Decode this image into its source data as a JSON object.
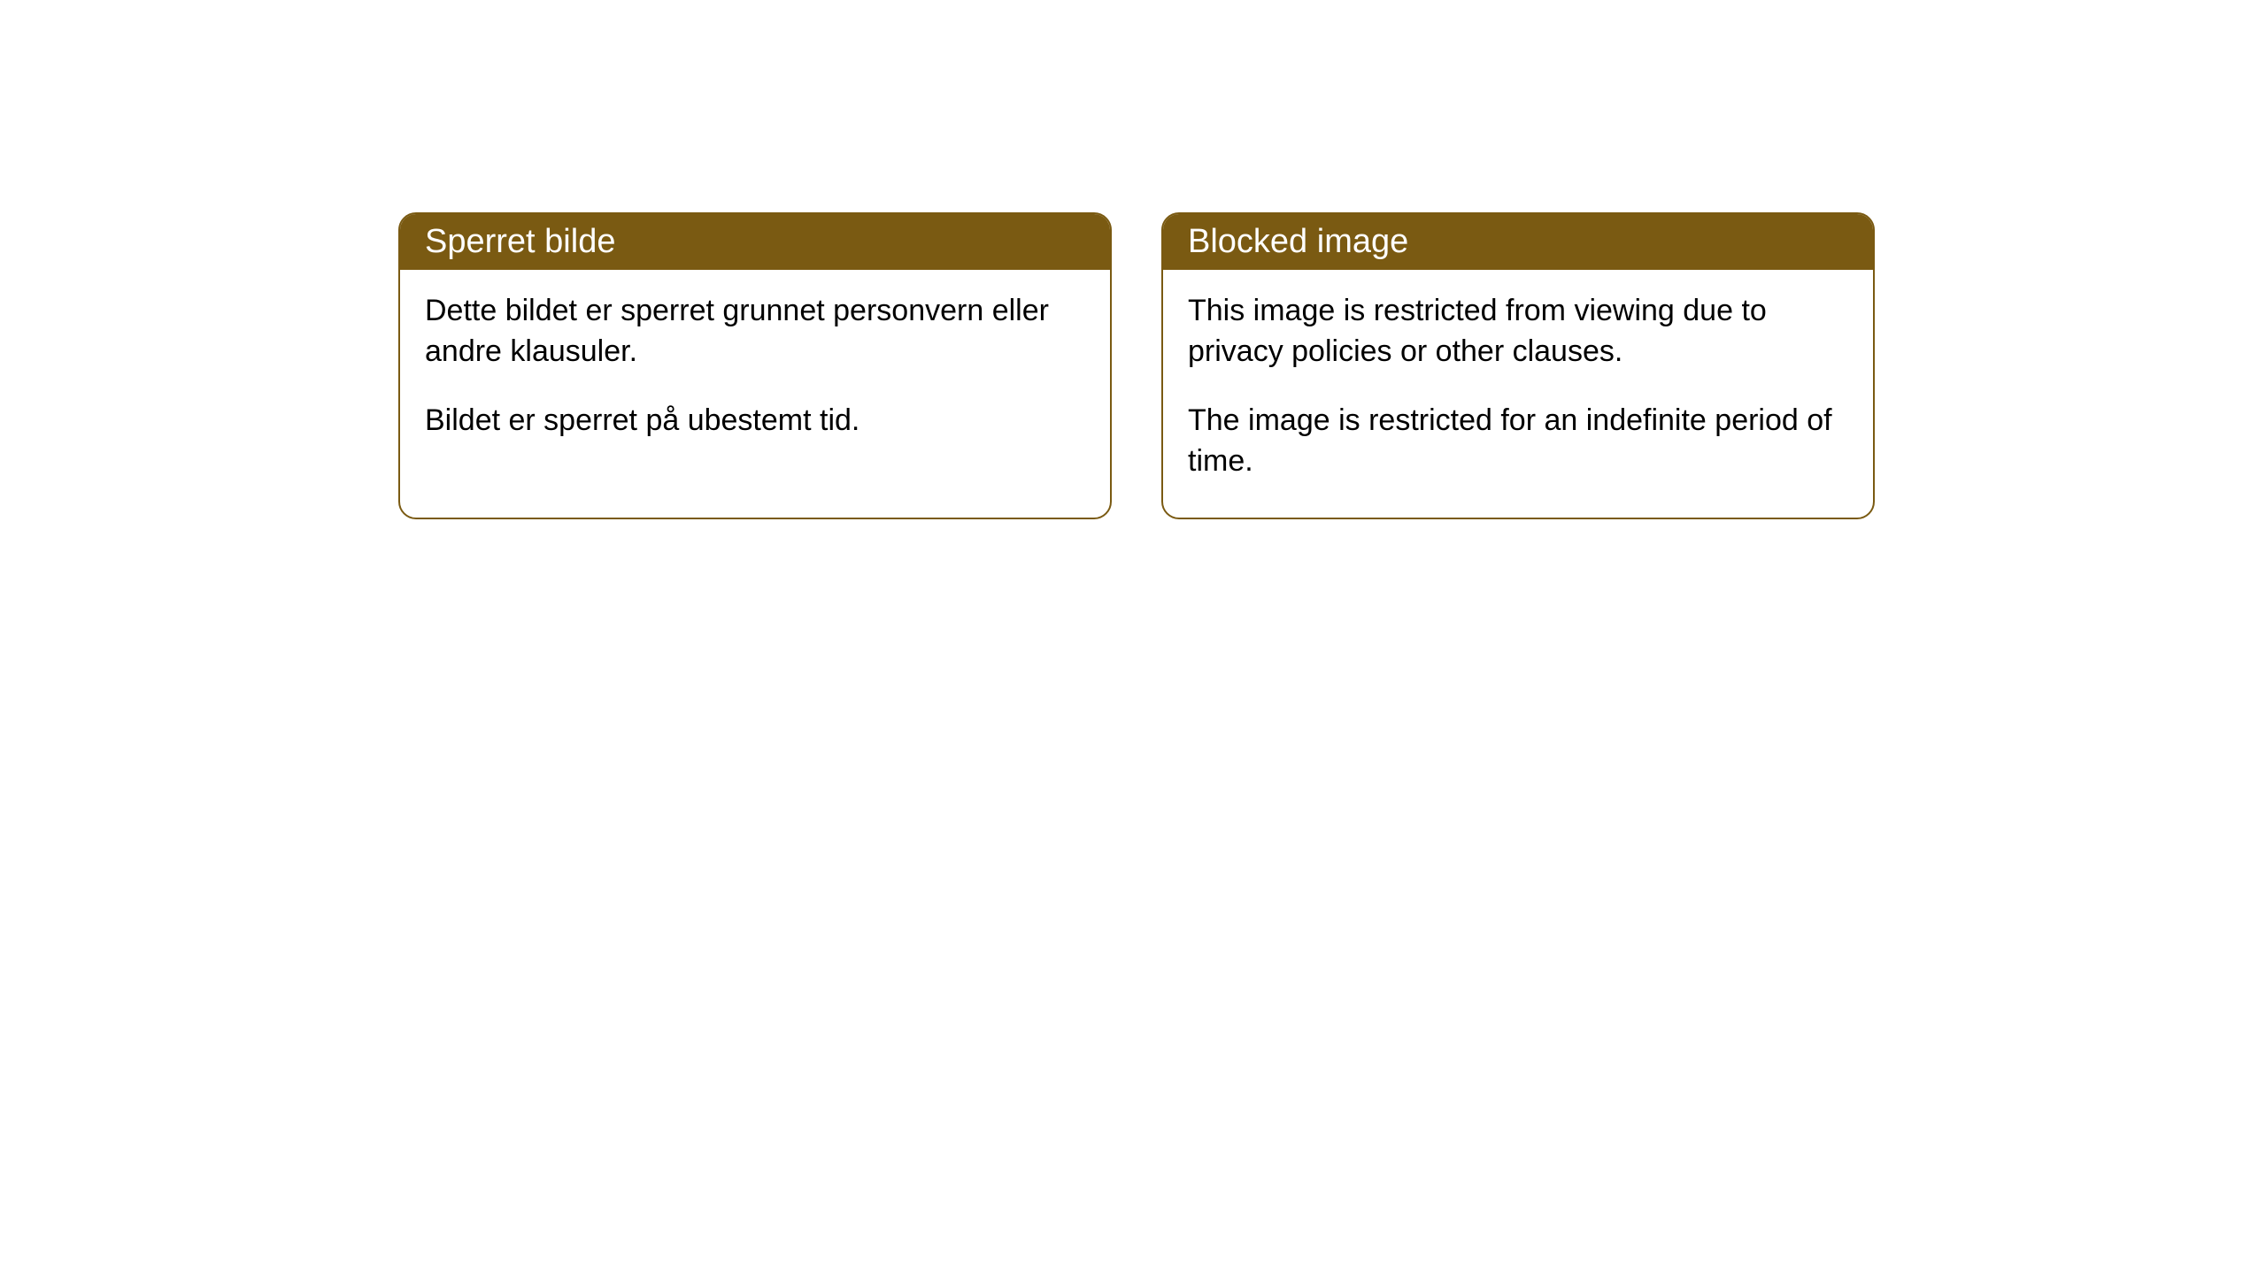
{
  "cards": [
    {
      "title": "Sperret bilde",
      "text1": "Dette bildet er sperret grunnet personvern eller andre klausuler.",
      "text2": "Bildet er sperret på ubestemt tid."
    },
    {
      "title": "Blocked image",
      "text1": "This image is restricted from viewing due to privacy policies or other clauses.",
      "text2": "The image is restricted for an indefinite period of time."
    }
  ],
  "styling": {
    "header_background": "#7a5a12",
    "header_text_color": "#ffffff",
    "border_color": "#7a5a12",
    "body_background": "#ffffff",
    "body_text_color": "#000000",
    "border_radius": 20,
    "title_fontsize": 38,
    "body_fontsize": 34
  }
}
